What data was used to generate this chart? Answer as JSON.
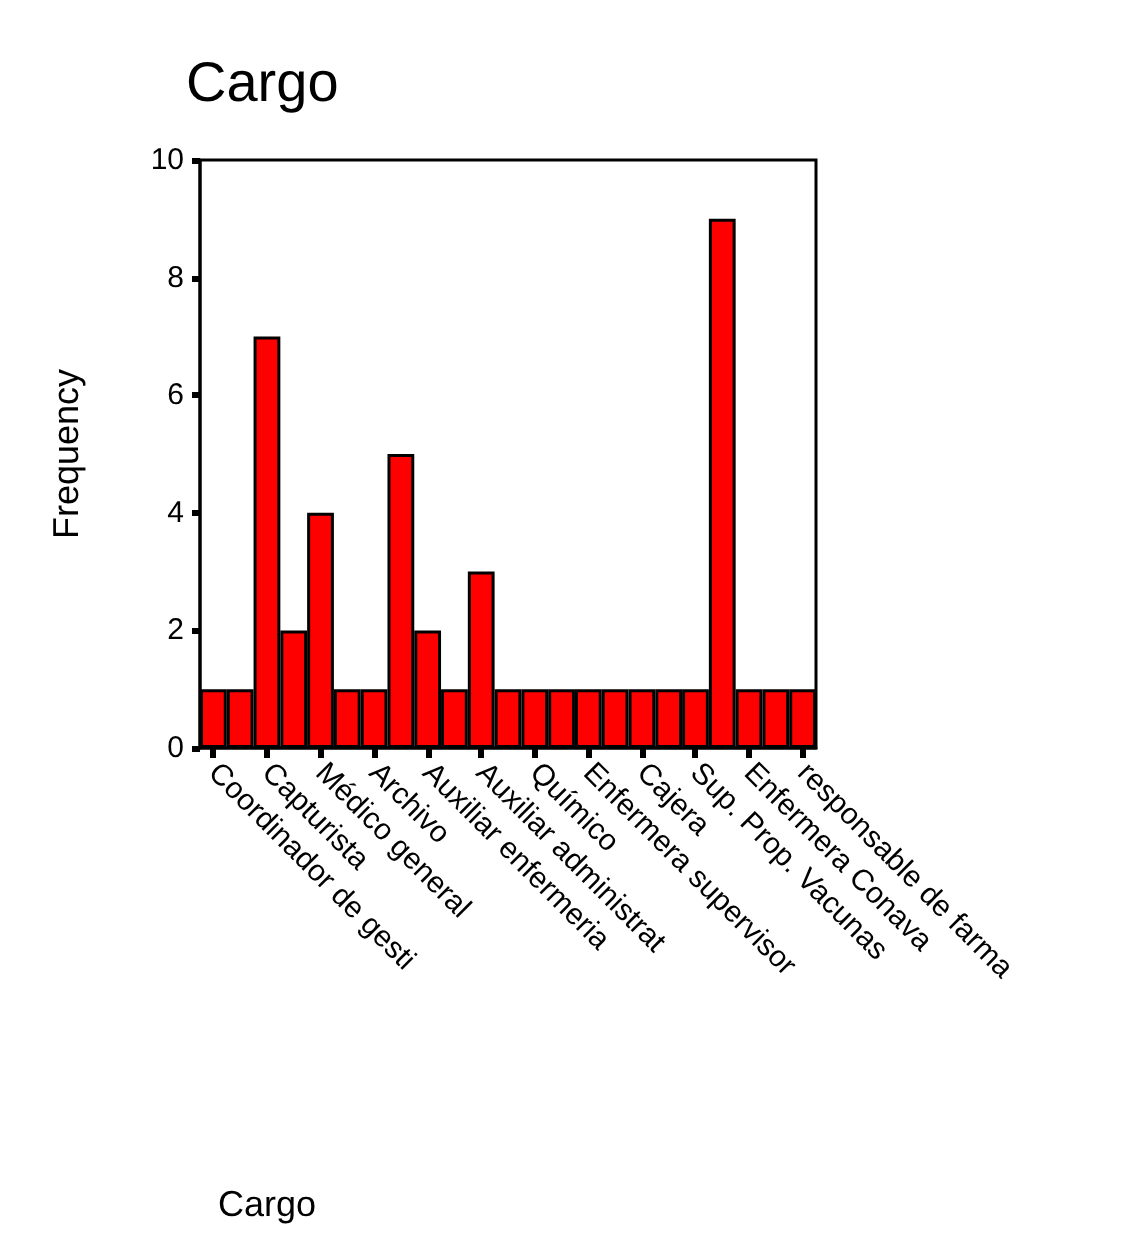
{
  "chart_data": {
    "type": "bar",
    "title": "Cargo",
    "annotations": [
      "Cargo"
    ],
    "ylabel": "Frequency",
    "categories": [
      "Coordinador de gesti",
      null,
      "Capturista",
      null,
      "Médico general",
      null,
      "Archivo",
      null,
      "Auxiliar enfermeria",
      null,
      "Auxiliar administrat",
      null,
      "Químico",
      null,
      "Enfermera supervisor",
      null,
      "Cajera",
      null,
      "Sup. Prop. Vacunas",
      null,
      "Enfermera Conava",
      null,
      "responsable de farma"
    ],
    "values": [
      1,
      1,
      7,
      2,
      4,
      1,
      1,
      5,
      2,
      1,
      3,
      1,
      1,
      1,
      1,
      1,
      1,
      1,
      1,
      9,
      1,
      1,
      1
    ],
    "color": "#ff0000",
    "ylim": [
      0,
      10
    ],
    "yticks": [
      0,
      2,
      4,
      6,
      8,
      10
    ],
    "grid": false
  }
}
